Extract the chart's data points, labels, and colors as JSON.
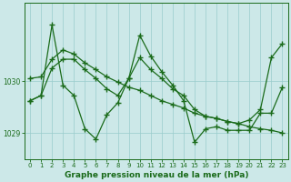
{
  "line1_zigzag": {
    "x": [
      0,
      1,
      2,
      3,
      4,
      5,
      6,
      7,
      8,
      9,
      10,
      11,
      12,
      13,
      14,
      15,
      16,
      17,
      18,
      19,
      20,
      21,
      22,
      23
    ],
    "y": [
      1029.62,
      1029.72,
      1031.08,
      1029.92,
      1029.72,
      1029.08,
      1028.88,
      1029.35,
      1029.58,
      1030.05,
      1030.88,
      1030.48,
      1030.18,
      1029.92,
      1029.62,
      1028.82,
      1029.08,
      1029.12,
      1029.05,
      1029.05,
      1029.05,
      1029.38,
      1029.38,
      1029.88
    ]
  },
  "line2_diagonal": {
    "x": [
      0,
      1,
      2,
      3,
      4,
      5,
      6,
      7,
      8,
      9,
      10,
      11,
      12,
      13,
      14,
      15,
      16,
      17,
      18,
      19,
      20,
      21,
      22,
      23
    ],
    "y": [
      1030.05,
      1030.08,
      1030.42,
      1030.6,
      1030.52,
      1030.35,
      1030.22,
      1030.08,
      1029.98,
      1029.88,
      1029.82,
      1029.72,
      1029.62,
      1029.55,
      1029.48,
      1029.38,
      1029.32,
      1029.28,
      1029.22,
      1029.18,
      1029.12,
      1029.08,
      1029.05,
      1029.0
    ]
  },
  "line3_smooth": {
    "x": [
      0,
      1,
      2,
      3,
      4,
      5,
      6,
      7,
      8,
      9,
      10,
      11,
      12,
      13,
      14,
      15,
      16,
      17,
      18,
      19,
      20,
      21,
      22,
      23
    ],
    "y": [
      1029.62,
      1029.72,
      1030.25,
      1030.42,
      1030.42,
      1030.22,
      1030.05,
      1029.85,
      1029.72,
      1030.05,
      1030.45,
      1030.22,
      1030.05,
      1029.85,
      1029.72,
      1029.45,
      1029.32,
      1029.28,
      1029.22,
      1029.18,
      1029.25,
      1029.45,
      1030.45,
      1030.72
    ]
  },
  "line_color": "#1a6b1a",
  "bg_color": "#cce8e8",
  "grid_color": "#99cccc",
  "ylim": [
    1028.5,
    1031.5
  ],
  "xlim": [
    -0.5,
    23.5
  ],
  "xlabel": "Graphe pression niveau de la mer (hPa)",
  "xticks": [
    0,
    1,
    2,
    3,
    4,
    5,
    6,
    7,
    8,
    9,
    10,
    11,
    12,
    13,
    14,
    15,
    16,
    17,
    18,
    19,
    20,
    21,
    22,
    23
  ],
  "yticks": [
    1029,
    1030
  ],
  "xlabel_fontsize": 6.5,
  "marker": "+",
  "markersize": 4,
  "linewidth": 0.9
}
